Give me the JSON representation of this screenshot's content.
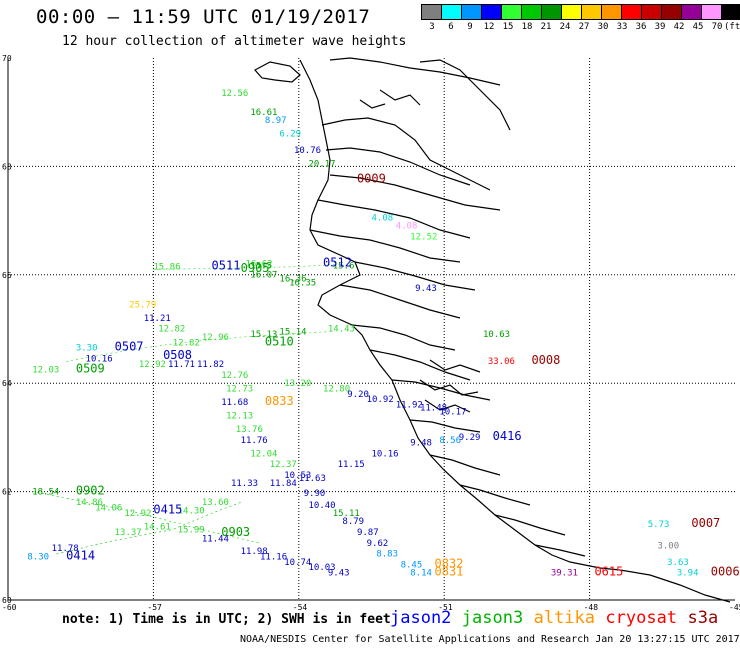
{
  "header": {
    "title": "00:00 – 11:59 UTC 01/19/2017",
    "subtitle": "12 hour collection of altimeter wave heights"
  },
  "legend": {
    "unit": "(ft)",
    "swatches": [
      {
        "label": "3",
        "color": "#7f7f7f"
      },
      {
        "label": "6",
        "color": "#00ffff"
      },
      {
        "label": "9",
        "color": "#0096ff"
      },
      {
        "label": "12",
        "color": "#0000ff"
      },
      {
        "label": "15",
        "color": "#32ff32"
      },
      {
        "label": "18",
        "color": "#00c800"
      },
      {
        "label": "21",
        "color": "#009600"
      },
      {
        "label": "24",
        "color": "#ffff00"
      },
      {
        "label": "27",
        "color": "#ffc800"
      },
      {
        "label": "30",
        "color": "#ff9600"
      },
      {
        "label": "33",
        "color": "#ff0000"
      },
      {
        "label": "36",
        "color": "#c80000"
      },
      {
        "label": "39",
        "color": "#960000"
      },
      {
        "label": "42",
        "color": "#960096"
      },
      {
        "label": "45",
        "color": "#ff96ff"
      },
      {
        "label": "70",
        "color": "#000000"
      }
    ]
  },
  "axes": {
    "lat_labels": [
      "70",
      "68",
      "66",
      "64",
      "62",
      "60"
    ],
    "lon_labels": [
      "-60",
      "-57",
      "-54",
      "-51",
      "-48",
      "-45"
    ]
  },
  "footer": {
    "note": "note: 1) Time is in UTC; 2) SWH is in feet",
    "satellites": [
      {
        "name": "jason2",
        "color": "#0000ff"
      },
      {
        "name": "jason3",
        "color": "#00b400"
      },
      {
        "name": "altika",
        "color": "#ff9600"
      },
      {
        "name": "cryosat",
        "color": "#ff0000"
      },
      {
        "name": "s3a",
        "color": "#960000"
      }
    ],
    "credit": "NOAA/NESDIS Center for Satellite Applications and Research    Jan 20 13:27:15 UTC 2017"
  },
  "observations": [
    {
      "text": "12.56",
      "color": "#32dc32",
      "lon": -55.6,
      "lat": 69.3
    },
    {
      "text": "16.61",
      "color": "#00a000",
      "lon": -55.0,
      "lat": 68.95
    },
    {
      "text": "8.97",
      "color": "#0096ff",
      "lon": -54.7,
      "lat": 68.8
    },
    {
      "text": "6.29",
      "color": "#00d0d0",
      "lon": -54.4,
      "lat": 68.55
    },
    {
      "text": "10.76",
      "color": "#0000c8",
      "lon": -54.1,
      "lat": 68.25
    },
    {
      "text": "20.17",
      "color": "#009600",
      "lon": -53.8,
      "lat": 68.0
    },
    {
      "text": "0009",
      "color": "#960000",
      "lon": -52.8,
      "lat": 67.7,
      "time": true
    },
    {
      "text": "4.08",
      "color": "#00d0d0",
      "lon": -52.5,
      "lat": 67.0
    },
    {
      "text": "4.08",
      "color": "#ff96ff",
      "lon": -52.0,
      "lat": 66.85
    },
    {
      "text": "12.52",
      "color": "#32ff32",
      "lon": -51.7,
      "lat": 66.65
    },
    {
      "text": "15.86",
      "color": "#32dc32",
      "lon": -57.0,
      "lat": 66.1
    },
    {
      "text": "0511",
      "color": "#0000c8",
      "lon": -55.8,
      "lat": 66.1,
      "time": true
    },
    {
      "text": "15.5",
      "color": "#00a000",
      "lon": -55.0,
      "lat": 66.12
    },
    {
      "text": "0512",
      "color": "#0000c8",
      "lon": -53.5,
      "lat": 66.15,
      "time": true
    },
    {
      "text": "0905",
      "color": "#00a000",
      "lon": -55.2,
      "lat": 66.05,
      "time": true
    },
    {
      "text": "16.07",
      "color": "#00a000",
      "lon": -55.0,
      "lat": 65.95
    },
    {
      "text": "16.36",
      "color": "#00a000",
      "lon": -54.4,
      "lat": 65.88
    },
    {
      "text": "16.35",
      "color": "#00a000",
      "lon": -54.2,
      "lat": 65.8
    },
    {
      "text": "9.43",
      "color": "#0000c8",
      "lon": -51.6,
      "lat": 65.7
    },
    {
      "text": "25.79",
      "color": "#ffc800",
      "lon": -57.5,
      "lat": 65.4
    },
    {
      "text": "11.21",
      "color": "#0000c8",
      "lon": -57.2,
      "lat": 65.15
    },
    {
      "text": "12.82",
      "color": "#32dc32",
      "lon": -56.9,
      "lat": 64.95
    },
    {
      "text": "12.82",
      "color": "#32dc32",
      "lon": -56.6,
      "lat": 64.7
    },
    {
      "text": "15.13",
      "color": "#00a000",
      "lon": -55.0,
      "lat": 64.85
    },
    {
      "text": "15.14",
      "color": "#00a000",
      "lon": -54.4,
      "lat": 64.9
    },
    {
      "text": "14.43",
      "color": "#32dc32",
      "lon": -53.4,
      "lat": 64.95
    },
    {
      "text": "10.63",
      "color": "#00a000",
      "lon": -50.2,
      "lat": 64.85
    },
    {
      "text": "0510",
      "color": "#00a000",
      "lon": -54.7,
      "lat": 64.7,
      "time": true
    },
    {
      "text": "3.30",
      "color": "#00d0d0",
      "lon": -58.6,
      "lat": 64.6
    },
    {
      "text": "0507",
      "color": "#0000c8",
      "lon": -57.8,
      "lat": 64.6,
      "time": true
    },
    {
      "text": "10.16",
      "color": "#0000c8",
      "lon": -58.4,
      "lat": 64.4
    },
    {
      "text": "0508",
      "color": "#0000c8",
      "lon": -56.8,
      "lat": 64.45,
      "time": true
    },
    {
      "text": "11.71",
      "color": "#0000c8",
      "lon": -56.7,
      "lat": 64.3
    },
    {
      "text": "11.82",
      "color": "#0000c8",
      "lon": -56.1,
      "lat": 64.3
    },
    {
      "text": "33.06",
      "color": "#ff0000",
      "lon": -50.1,
      "lat": 64.35
    },
    {
      "text": "0008",
      "color": "#960000",
      "lon": -49.2,
      "lat": 64.35,
      "time": true
    },
    {
      "text": "12.03",
      "color": "#32dc32",
      "lon": -59.5,
      "lat": 64.2
    },
    {
      "text": "0509",
      "color": "#00a000",
      "lon": -58.6,
      "lat": 64.2,
      "time": true
    },
    {
      "text": "12.76",
      "color": "#32dc32",
      "lon": -55.6,
      "lat": 64.1
    },
    {
      "text": "12.73",
      "color": "#32dc32",
      "lon": -55.5,
      "lat": 63.85
    },
    {
      "text": "13.20",
      "color": "#32dc32",
      "lon": -54.3,
      "lat": 63.95
    },
    {
      "text": "12.80",
      "color": "#32dc32",
      "lon": -53.5,
      "lat": 63.85
    },
    {
      "text": "9.20",
      "color": "#0000c8",
      "lon": -53.0,
      "lat": 63.75
    },
    {
      "text": "10.92",
      "color": "#0000c8",
      "lon": -52.6,
      "lat": 63.65
    },
    {
      "text": "11.92",
      "color": "#0000c8",
      "lon": -52.0,
      "lat": 63.55
    },
    {
      "text": "11.48",
      "color": "#0000c8",
      "lon": -51.5,
      "lat": 63.5
    },
    {
      "text": "10.17",
      "color": "#0000c8",
      "lon": -51.1,
      "lat": 63.42
    },
    {
      "text": "11.68",
      "color": "#0000c8",
      "lon": -55.6,
      "lat": 63.6
    },
    {
      "text": "0833",
      "color": "#ff9600",
      "lon": -54.7,
      "lat": 63.6,
      "time": true
    },
    {
      "text": "12.13",
      "color": "#32dc32",
      "lon": -55.5,
      "lat": 63.35
    },
    {
      "text": "13.76",
      "color": "#32dc32",
      "lon": -55.3,
      "lat": 63.1
    },
    {
      "text": "9.29",
      "color": "#0000c8",
      "lon": -50.7,
      "lat": 62.95
    },
    {
      "text": "0416",
      "color": "#0000c8",
      "lon": -50.0,
      "lat": 62.95,
      "time": true
    },
    {
      "text": "9.48",
      "color": "#0000c8",
      "lon": -51.7,
      "lat": 62.85
    },
    {
      "text": "8.56",
      "color": "#0096ff",
      "lon": -51.1,
      "lat": 62.9
    },
    {
      "text": "11.76",
      "color": "#0000c8",
      "lon": -55.2,
      "lat": 62.9
    },
    {
      "text": "10.16",
      "color": "#0000c8",
      "lon": -52.5,
      "lat": 62.65
    },
    {
      "text": "12.04",
      "color": "#32dc32",
      "lon": -55.0,
      "lat": 62.65
    },
    {
      "text": "12.37",
      "color": "#32dc32",
      "lon": -54.6,
      "lat": 62.45
    },
    {
      "text": "11.15",
      "color": "#0000c8",
      "lon": -53.2,
      "lat": 62.45
    },
    {
      "text": "10.53",
      "color": "#0000c8",
      "lon": -54.3,
      "lat": 62.25
    },
    {
      "text": "11.33",
      "color": "#0000c8",
      "lon": -55.4,
      "lat": 62.1
    },
    {
      "text": "18.54",
      "color": "#00a000",
      "lon": -59.5,
      "lat": 61.95
    },
    {
      "text": "0902",
      "color": "#00a000",
      "lon": -58.6,
      "lat": 61.95,
      "time": true
    },
    {
      "text": "9.90",
      "color": "#0000c8",
      "lon": -53.9,
      "lat": 61.92
    },
    {
      "text": "10.40",
      "color": "#0000c8",
      "lon": -53.8,
      "lat": 61.7
    },
    {
      "text": "0415",
      "color": "#0000c8",
      "lon": -57.0,
      "lat": 61.6,
      "time": true
    },
    {
      "text": "15.11",
      "color": "#00a000",
      "lon": -53.3,
      "lat": 61.55
    },
    {
      "text": "8.79",
      "color": "#0000c8",
      "lon": -53.1,
      "lat": 61.4
    },
    {
      "text": "9.87",
      "color": "#0000c8",
      "lon": -52.8,
      "lat": 61.2
    },
    {
      "text": "0903",
      "color": "#00a000",
      "lon": -55.6,
      "lat": 61.18,
      "time": true
    },
    {
      "text": "11.44",
      "color": "#0000c8",
      "lon": -56.0,
      "lat": 61.08
    },
    {
      "text": "9.62",
      "color": "#0000c8",
      "lon": -52.6,
      "lat": 61.0
    },
    {
      "text": "8.83",
      "color": "#0096ff",
      "lon": -52.4,
      "lat": 60.8
    },
    {
      "text": "11.98",
      "color": "#0000c8",
      "lon": -55.2,
      "lat": 60.85
    },
    {
      "text": "11.16",
      "color": "#0000c8",
      "lon": -54.8,
      "lat": 60.75
    },
    {
      "text": "10.74",
      "color": "#0000c8",
      "lon": -54.3,
      "lat": 60.65
    },
    {
      "text": "10.03",
      "color": "#0000c8",
      "lon": -53.8,
      "lat": 60.55
    },
    {
      "text": "9.43",
      "color": "#0000c8",
      "lon": -53.4,
      "lat": 60.45
    },
    {
      "text": "8.45",
      "color": "#0096ff",
      "lon": -51.9,
      "lat": 60.6
    },
    {
      "text": "0832",
      "color": "#ff9600",
      "lon": -51.2,
      "lat": 60.6,
      "time": true
    },
    {
      "text": "8.14",
      "color": "#0096ff",
      "lon": -51.7,
      "lat": 60.45
    },
    {
      "text": "0831",
      "color": "#ff9600",
      "lon": -51.2,
      "lat": 60.45,
      "time": true
    },
    {
      "text": "11.78",
      "color": "#0000c8",
      "lon": -59.1,
      "lat": 60.9
    },
    {
      "text": "8.30",
      "color": "#0096ff",
      "lon": -59.6,
      "lat": 60.75
    },
    {
      "text": "0414",
      "color": "#0000c8",
      "lon": -58.8,
      "lat": 60.75,
      "time": true
    },
    {
      "text": "39.31",
      "color": "#960096",
      "lon": -48.8,
      "lat": 60.45
    },
    {
      "text": "0615",
      "color": "#ff0000",
      "lon": -47.9,
      "lat": 60.45,
      "time": true
    },
    {
      "text": "5.73",
      "color": "#00d0d0",
      "lon": -46.8,
      "lat": 61.35
    },
    {
      "text": "0007",
      "color": "#960000",
      "lon": -45.9,
      "lat": 61.35,
      "time": true
    },
    {
      "text": "3.00",
      "color": "#7f7f7f",
      "lon": -46.6,
      "lat": 60.95
    },
    {
      "text": "3.63",
      "color": "#00d0d0",
      "lon": -46.4,
      "lat": 60.65
    },
    {
      "text": "3.94",
      "color": "#00d0d0",
      "lon": -46.2,
      "lat": 60.45
    },
    {
      "text": "0006",
      "color": "#960000",
      "lon": -45.5,
      "lat": 60.45,
      "time": true
    }
  ],
  "tracks": [
    {
      "color": "#00c800",
      "points": [
        [
          -59.5,
          62.0
        ],
        [
          -57.5,
          61.65
        ],
        [
          -56.0,
          61.3
        ],
        [
          -54.8,
          61.05
        ]
      ]
    },
    {
      "color": "#00c800",
      "points": [
        [
          -59.0,
          60.85
        ],
        [
          -57.8,
          61.1
        ],
        [
          -56.6,
          61.3
        ],
        [
          -55.8,
          61.6
        ],
        [
          -55.2,
          61.8
        ]
      ]
    },
    {
      "color": "#32dc32",
      "points": [
        [
          -58.8,
          64.4
        ],
        [
          -57.6,
          64.6
        ],
        [
          -56.4,
          64.75
        ],
        [
          -55.2,
          64.85
        ],
        [
          -53.4,
          64.95
        ]
      ]
    },
    {
      "color": "#32dc32",
      "points": [
        [
          -57.0,
          66.1
        ],
        [
          -55.5,
          66.12
        ],
        [
          -54.0,
          66.15
        ],
        [
          -53.1,
          66.2
        ]
      ]
    }
  ],
  "text_clusters": [
    {
      "text": "16.62",
      "color": "#32dc32",
      "lon": -55.1,
      "lat": 66.15
    },
    {
      "text": "15.6",
      "color": "#00a000",
      "lon": -53.3,
      "lat": 66.12
    },
    {
      "text": "12.96",
      "color": "#32dc32",
      "lon": -56.0,
      "lat": 64.8
    },
    {
      "text": "12.92",
      "color": "#32dc32",
      "lon": -57.3,
      "lat": 64.3
    },
    {
      "text": "14.86",
      "color": "#32dc32",
      "lon": -58.6,
      "lat": 61.75
    },
    {
      "text": "14.06",
      "color": "#32dc32",
      "lon": -58.2,
      "lat": 61.65
    },
    {
      "text": "12.92",
      "color": "#32dc32",
      "lon": -57.6,
      "lat": 61.55
    },
    {
      "text": "14.30",
      "color": "#32dc32",
      "lon": -56.5,
      "lat": 61.6
    },
    {
      "text": "13.60",
      "color": "#32dc32",
      "lon": -56.0,
      "lat": 61.75
    },
    {
      "text": "15.99",
      "color": "#32dc32",
      "lon": -56.5,
      "lat": 61.25
    },
    {
      "text": "13.37",
      "color": "#32dc32",
      "lon": -57.8,
      "lat": 61.2
    },
    {
      "text": "14.61",
      "color": "#32dc32",
      "lon": -57.2,
      "lat": 61.3
    },
    {
      "text": "11.84",
      "color": "#0000c8",
      "lon": -54.6,
      "lat": 62.1
    },
    {
      "text": "11.63",
      "color": "#0000c8",
      "lon": -54.0,
      "lat": 62.2
    }
  ]
}
